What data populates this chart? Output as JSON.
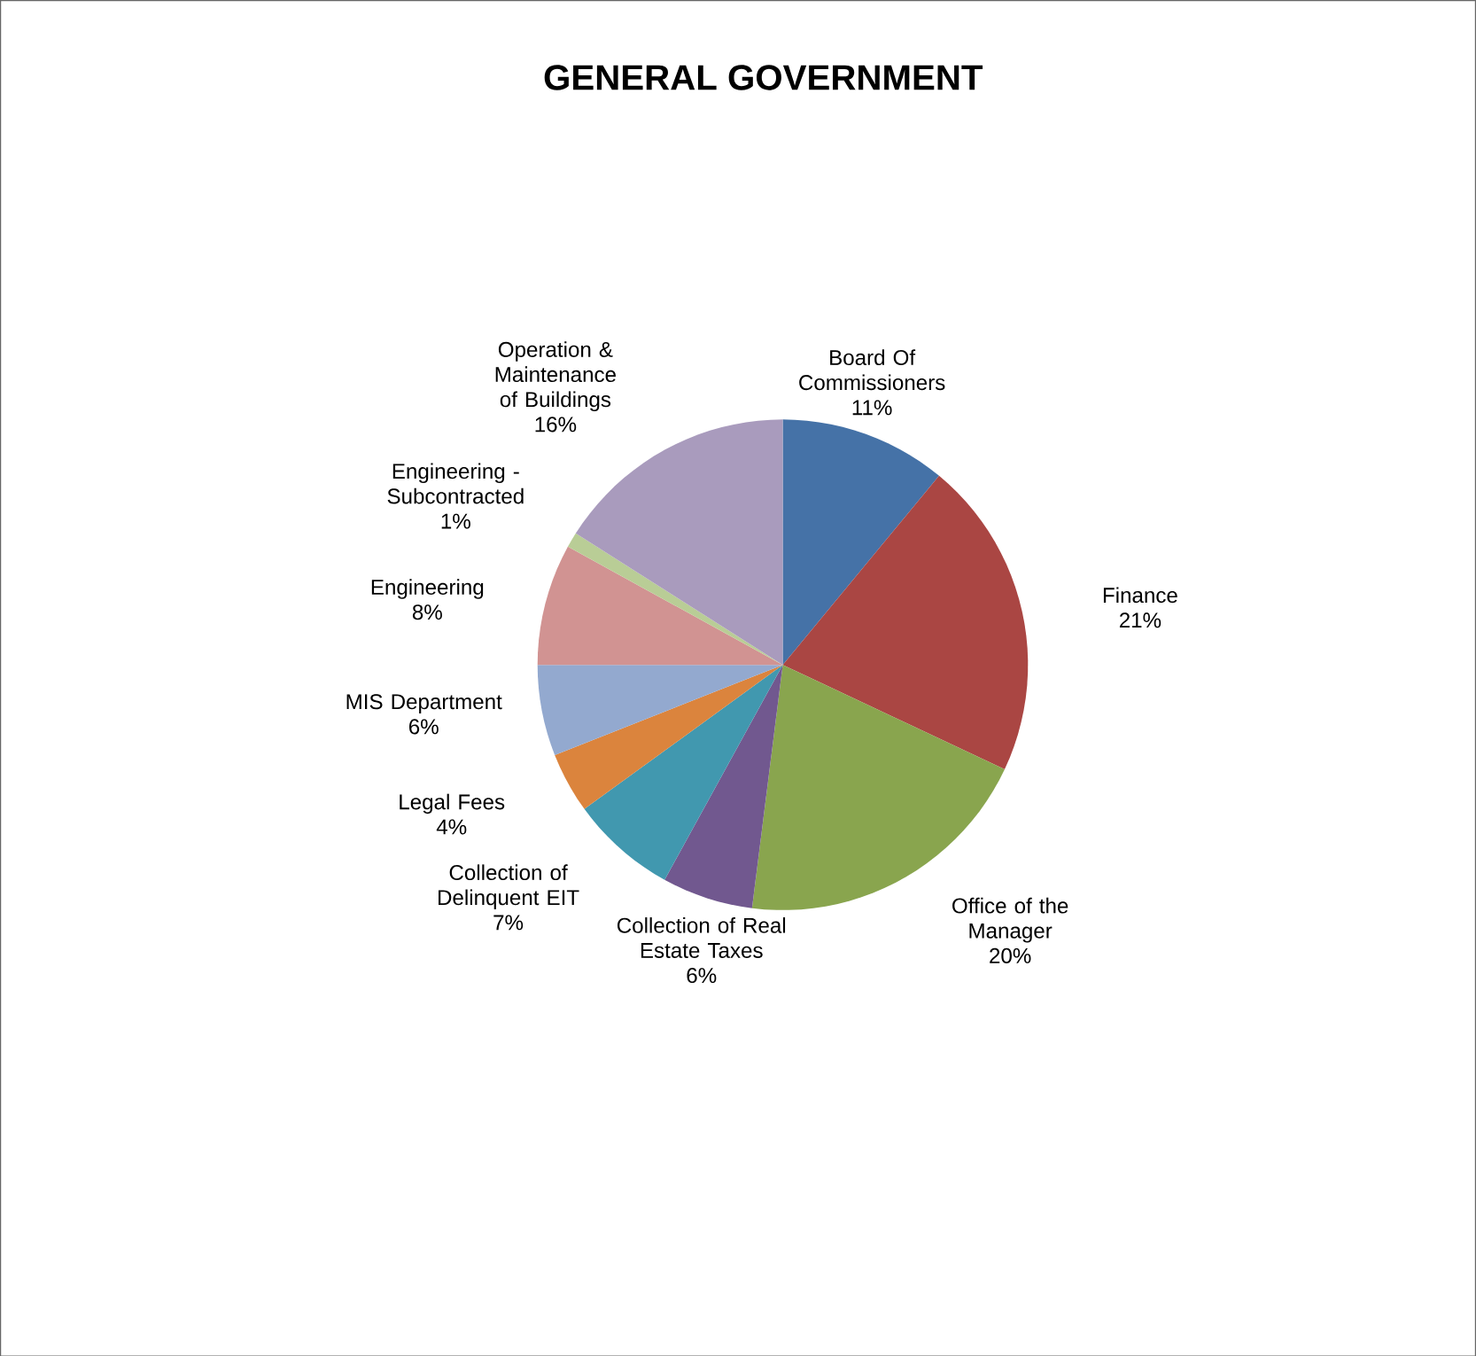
{
  "chart_data": {
    "type": "pie",
    "title": "GENERAL GOVERNMENT",
    "categories": [
      "Board Of Commissioners",
      "Finance",
      "Office of the Manager",
      "Collection of Real Estate Taxes",
      "Collection of Delinquent EIT",
      "Legal Fees",
      "MIS Department",
      "Engineering",
      "Engineering - Subcontracted",
      "Operation & Maintenance of Buildings"
    ],
    "values": [
      11,
      21,
      20,
      6,
      7,
      4,
      6,
      8,
      1,
      16
    ],
    "value_labels": [
      "11%",
      "21%",
      "20%",
      "6%",
      "7%",
      "4%",
      "6%",
      "8%",
      "1%",
      "16%"
    ],
    "colors": [
      "#4572a7",
      "#aa4643",
      "#89a54e",
      "#71588f",
      "#4198af",
      "#db843d",
      "#93a9cf",
      "#d19392",
      "#b9cd96",
      "#a99bbd"
    ]
  }
}
